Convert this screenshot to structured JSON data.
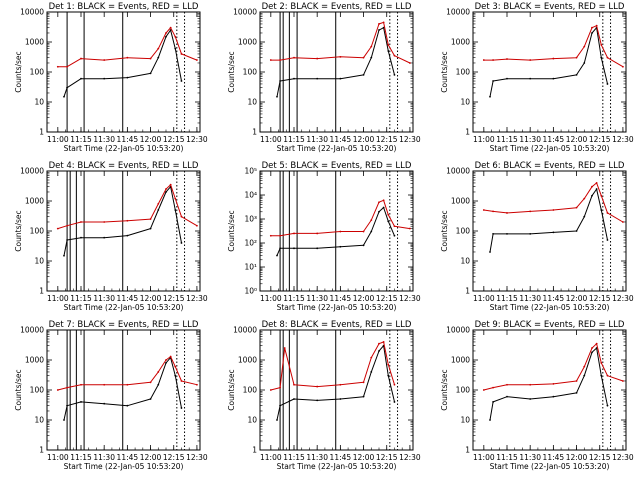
{
  "figure": {
    "panel_titles": [
      "Det 1: BLACK = Events, RED = LLD",
      "Det 2: BLACK = Events, RED = LLD",
      "Det 3: BLACK = Events, RED = LLD",
      "Det 4: BLACK = Events, RED = LLD",
      "Det 5: BLACK = Events, RED = LLD",
      "Det 6: BLACK = Events, RED = LLD",
      "Det 7: BLACK = Events, RED = LLD",
      "Det 8: BLACK = Events, RED = LLD",
      "Det 9: BLACK = Events, RED = LLD"
    ],
    "xlabel": "Start Time (22-Jan-05 10:53:20)",
    "ylabel": "Counts/sec",
    "colors": {
      "events": "#000000",
      "lld": "#cc0000",
      "axes": "#000000"
    }
  },
  "chart_data": [
    {
      "type": "line",
      "title": "Det 1: BLACK = Events, RED = LLD",
      "yscale": "log",
      "ylim": [
        1,
        10000
      ],
      "ytick_labels": [
        "1",
        "10",
        "100",
        "1000",
        "10000"
      ],
      "x_ticks": [
        "11:00",
        "11:15",
        "11:30",
        "11:45",
        "12:00",
        "12:15",
        "12:30"
      ],
      "vlines_solid": [
        "11:06",
        "11:17",
        "11:42"
      ],
      "vlines_dotted": [
        "12:17",
        "12:22"
      ],
      "series": [
        {
          "name": "Events",
          "color": "#000000",
          "x": [
            "11:04",
            "11:06",
            "11:15",
            "11:30",
            "11:45",
            "12:00",
            "12:05",
            "12:10",
            "12:13",
            "12:16",
            "12:20"
          ],
          "values": [
            15,
            30,
            60,
            60,
            65,
            90,
            300,
            1500,
            2500,
            600,
            50
          ]
        },
        {
          "name": "LLD",
          "color": "#cc0000",
          "x": [
            "11:00",
            "11:06",
            "11:15",
            "11:30",
            "11:45",
            "12:00",
            "12:05",
            "12:10",
            "12:13",
            "12:16",
            "12:20",
            "12:30"
          ],
          "values": [
            150,
            150,
            280,
            250,
            300,
            280,
            600,
            2000,
            3000,
            1500,
            400,
            250
          ]
        }
      ]
    },
    {
      "type": "line",
      "title": "Det 2: BLACK = Events, RED = LLD",
      "yscale": "log",
      "ylim": [
        1,
        10000
      ],
      "ytick_labels": [
        "1",
        "10",
        "100",
        "1000",
        "10000"
      ],
      "x_ticks": [
        "11:00",
        "11:15",
        "11:30",
        "11:45",
        "12:00",
        "12:15",
        "12:30"
      ],
      "vlines_solid": [
        "11:06",
        "11:08",
        "11:12",
        "11:17",
        "11:42"
      ],
      "vlines_dotted": [
        "12:17",
        "12:22"
      ],
      "series": [
        {
          "name": "Events",
          "color": "#000000",
          "x": [
            "11:04",
            "11:06",
            "11:15",
            "11:30",
            "11:45",
            "12:00",
            "12:05",
            "12:10",
            "12:13",
            "12:16",
            "12:20"
          ],
          "values": [
            15,
            50,
            60,
            60,
            60,
            80,
            300,
            2500,
            3000,
            500,
            80
          ]
        },
        {
          "name": "LLD",
          "color": "#cc0000",
          "x": [
            "11:00",
            "11:06",
            "11:15",
            "11:30",
            "11:45",
            "12:00",
            "12:05",
            "12:10",
            "12:13",
            "12:16",
            "12:20",
            "12:30"
          ],
          "values": [
            250,
            250,
            300,
            280,
            320,
            300,
            700,
            4000,
            4500,
            800,
            350,
            200
          ]
        }
      ]
    },
    {
      "type": "line",
      "title": "Det 3: BLACK = Events, RED = LLD",
      "yscale": "log",
      "ylim": [
        1,
        10000
      ],
      "ytick_labels": [
        "1",
        "10",
        "100",
        "1000",
        "10000"
      ],
      "x_ticks": [
        "11:00",
        "11:15",
        "11:30",
        "11:45",
        "12:00",
        "12:15",
        "12:30"
      ],
      "vlines_solid": [],
      "vlines_dotted": [
        "12:17",
        "12:22"
      ],
      "series": [
        {
          "name": "Events",
          "color": "#000000",
          "x": [
            "11:04",
            "11:06",
            "11:15",
            "11:30",
            "11:45",
            "12:00",
            "12:05",
            "12:10",
            "12:13",
            "12:16",
            "12:20"
          ],
          "values": [
            15,
            50,
            60,
            60,
            60,
            80,
            200,
            2000,
            3000,
            300,
            40
          ]
        },
        {
          "name": "LLD",
          "color": "#cc0000",
          "x": [
            "11:00",
            "11:06",
            "11:15",
            "11:30",
            "11:45",
            "12:00",
            "12:05",
            "12:10",
            "12:13",
            "12:16",
            "12:20",
            "12:30"
          ],
          "values": [
            250,
            250,
            270,
            250,
            280,
            300,
            700,
            3000,
            3500,
            800,
            300,
            150
          ]
        }
      ]
    },
    {
      "type": "line",
      "title": "Det 4: BLACK = Events, RED = LLD",
      "yscale": "log",
      "ylim": [
        1,
        10000
      ],
      "ytick_labels": [
        "1",
        "10",
        "100",
        "1000",
        "10000"
      ],
      "x_ticks": [
        "11:00",
        "11:15",
        "11:30",
        "11:45",
        "12:00",
        "12:15",
        "12:30"
      ],
      "vlines_solid": [
        "11:06",
        "11:08",
        "11:12",
        "11:17",
        "11:42"
      ],
      "vlines_dotted": [
        "12:17",
        "12:22"
      ],
      "series": [
        {
          "name": "Events",
          "color": "#000000",
          "x": [
            "11:04",
            "11:06",
            "11:15",
            "11:30",
            "11:45",
            "12:00",
            "12:05",
            "12:10",
            "12:13",
            "12:16",
            "12:20"
          ],
          "values": [
            15,
            50,
            60,
            60,
            70,
            120,
            500,
            2000,
            3000,
            500,
            40
          ]
        },
        {
          "name": "LLD",
          "color": "#cc0000",
          "x": [
            "11:00",
            "11:06",
            "11:15",
            "11:30",
            "11:45",
            "12:00",
            "12:05",
            "12:10",
            "12:13",
            "12:16",
            "12:20",
            "12:30"
          ],
          "values": [
            120,
            150,
            200,
            200,
            220,
            250,
            800,
            2500,
            3500,
            1200,
            300,
            150
          ]
        }
      ]
    },
    {
      "type": "line",
      "title": "Det 5: BLACK = Events, RED = LLD",
      "yscale": "log",
      "ylim": [
        1,
        100000
      ],
      "ytick_labels": [
        "10⁰",
        "10¹",
        "10²",
        "10³",
        "10⁴",
        "10⁵"
      ],
      "x_ticks": [
        "11:00",
        "11:15",
        "11:30",
        "11:45",
        "12:00",
        "12:15",
        "12:30"
      ],
      "vlines_solid": [
        "11:06",
        "11:08",
        "11:12",
        "11:17",
        "11:42"
      ],
      "vlines_dotted": [
        "12:17",
        "12:22"
      ],
      "series": [
        {
          "name": "Events",
          "color": "#000000",
          "x": [
            "11:04",
            "11:06",
            "11:15",
            "11:30",
            "11:45",
            "12:00",
            "12:05",
            "12:10",
            "12:13",
            "12:16",
            "12:20"
          ],
          "values": [
            30,
            60,
            60,
            60,
            70,
            80,
            300,
            2000,
            3000,
            800,
            200
          ]
        },
        {
          "name": "LLD",
          "color": "#cc0000",
          "x": [
            "11:00",
            "11:06",
            "11:15",
            "11:30",
            "11:45",
            "12:00",
            "12:05",
            "12:10",
            "12:13",
            "12:16",
            "12:20",
            "12:30"
          ],
          "values": [
            200,
            200,
            250,
            250,
            300,
            300,
            900,
            5000,
            6000,
            1500,
            500,
            400
          ]
        }
      ]
    },
    {
      "type": "line",
      "title": "Det 6: BLACK = Events, RED = LLD",
      "yscale": "log",
      "ylim": [
        1,
        10000
      ],
      "ytick_labels": [
        "1",
        "10",
        "100",
        "1000",
        "10000"
      ],
      "x_ticks": [
        "11:00",
        "11:15",
        "11:30",
        "11:45",
        "12:00",
        "12:15",
        "12:30"
      ],
      "vlines_solid": [],
      "vlines_dotted": [
        "12:17",
        "12:22"
      ],
      "series": [
        {
          "name": "Events",
          "color": "#000000",
          "x": [
            "11:04",
            "11:06",
            "11:15",
            "11:30",
            "11:45",
            "12:00",
            "12:05",
            "12:10",
            "12:13",
            "12:16",
            "12:20"
          ],
          "values": [
            20,
            80,
            80,
            80,
            90,
            100,
            300,
            1500,
            2500,
            500,
            50
          ]
        },
        {
          "name": "LLD",
          "color": "#cc0000",
          "x": [
            "11:00",
            "11:06",
            "11:15",
            "11:30",
            "11:45",
            "12:00",
            "12:05",
            "12:10",
            "12:13",
            "12:16",
            "12:20",
            "12:30"
          ],
          "values": [
            500,
            450,
            400,
            450,
            500,
            600,
            1200,
            3000,
            4000,
            1500,
            400,
            200
          ]
        }
      ]
    },
    {
      "type": "line",
      "title": "Det 7: BLACK = Events, RED = LLD",
      "yscale": "log",
      "ylim": [
        1,
        10000
      ],
      "ytick_labels": [
        "1",
        "10",
        "100",
        "1000",
        "10000"
      ],
      "x_ticks": [
        "11:00",
        "11:15",
        "11:30",
        "11:45",
        "12:00",
        "12:15",
        "12:30"
      ],
      "vlines_solid": [
        "11:06",
        "11:08",
        "11:12",
        "11:17",
        "11:42"
      ],
      "vlines_dotted": [
        "12:17",
        "12:22"
      ],
      "series": [
        {
          "name": "Events",
          "color": "#000000",
          "x": [
            "11:04",
            "11:06",
            "11:15",
            "11:30",
            "11:45",
            "12:00",
            "12:05",
            "12:10",
            "12:13",
            "12:16",
            "12:20"
          ],
          "values": [
            10,
            30,
            40,
            35,
            30,
            50,
            150,
            800,
            1200,
            300,
            25
          ]
        },
        {
          "name": "LLD",
          "color": "#cc0000",
          "x": [
            "11:00",
            "11:06",
            "11:15",
            "11:30",
            "11:45",
            "12:00",
            "12:05",
            "12:10",
            "12:13",
            "12:16",
            "12:20",
            "12:30"
          ],
          "values": [
            100,
            120,
            150,
            150,
            150,
            180,
            400,
            1000,
            1300,
            600,
            200,
            150
          ]
        }
      ]
    },
    {
      "type": "line",
      "title": "Det 8: BLACK = Events, RED = LLD",
      "yscale": "log",
      "ylim": [
        1,
        10000
      ],
      "ytick_labels": [
        "1",
        "10",
        "100",
        "1000",
        "10000"
      ],
      "x_ticks": [
        "11:00",
        "11:15",
        "11:30",
        "11:45",
        "12:00",
        "12:15",
        "12:30"
      ],
      "vlines_solid": [
        "11:06",
        "11:08",
        "11:12",
        "11:17",
        "11:42"
      ],
      "vlines_dotted": [
        "12:17",
        "12:22"
      ],
      "series": [
        {
          "name": "Events",
          "color": "#000000",
          "x": [
            "11:04",
            "11:06",
            "11:15",
            "11:30",
            "11:45",
            "12:00",
            "12:05",
            "12:10",
            "12:13",
            "12:16",
            "12:20"
          ],
          "values": [
            10,
            30,
            50,
            45,
            50,
            60,
            400,
            2000,
            3000,
            300,
            40
          ]
        },
        {
          "name": "LLD",
          "color": "#cc0000",
          "x": [
            "11:00",
            "11:06",
            "11:09",
            "11:15",
            "11:30",
            "11:45",
            "12:00",
            "12:05",
            "12:10",
            "12:13",
            "12:16",
            "12:20"
          ],
          "values": [
            100,
            120,
            2500,
            150,
            130,
            150,
            180,
            1200,
            3500,
            4000,
            700,
            150
          ]
        }
      ]
    },
    {
      "type": "line",
      "title": "Det 9: BLACK = Events, RED = LLD",
      "yscale": "log",
      "ylim": [
        1,
        10000
      ],
      "ytick_labels": [
        "1",
        "10",
        "100",
        "1000",
        "10000"
      ],
      "x_ticks": [
        "11:00",
        "11:15",
        "11:30",
        "11:45",
        "12:00",
        "12:15",
        "12:30"
      ],
      "vlines_solid": [],
      "vlines_dotted": [
        "12:17",
        "12:22"
      ],
      "series": [
        {
          "name": "Events",
          "color": "#000000",
          "x": [
            "11:04",
            "11:06",
            "11:15",
            "11:30",
            "11:45",
            "12:00",
            "12:05",
            "12:10",
            "12:13",
            "12:16",
            "12:20"
          ],
          "values": [
            10,
            40,
            60,
            50,
            60,
            80,
            300,
            1800,
            2500,
            300,
            30
          ]
        },
        {
          "name": "LLD",
          "color": "#cc0000",
          "x": [
            "11:00",
            "11:06",
            "11:15",
            "11:30",
            "11:45",
            "12:00",
            "12:05",
            "12:10",
            "12:13",
            "12:16",
            "12:20",
            "12:30"
          ],
          "values": [
            100,
            120,
            150,
            150,
            160,
            200,
            600,
            2500,
            3500,
            800,
            300,
            200
          ]
        }
      ]
    }
  ]
}
